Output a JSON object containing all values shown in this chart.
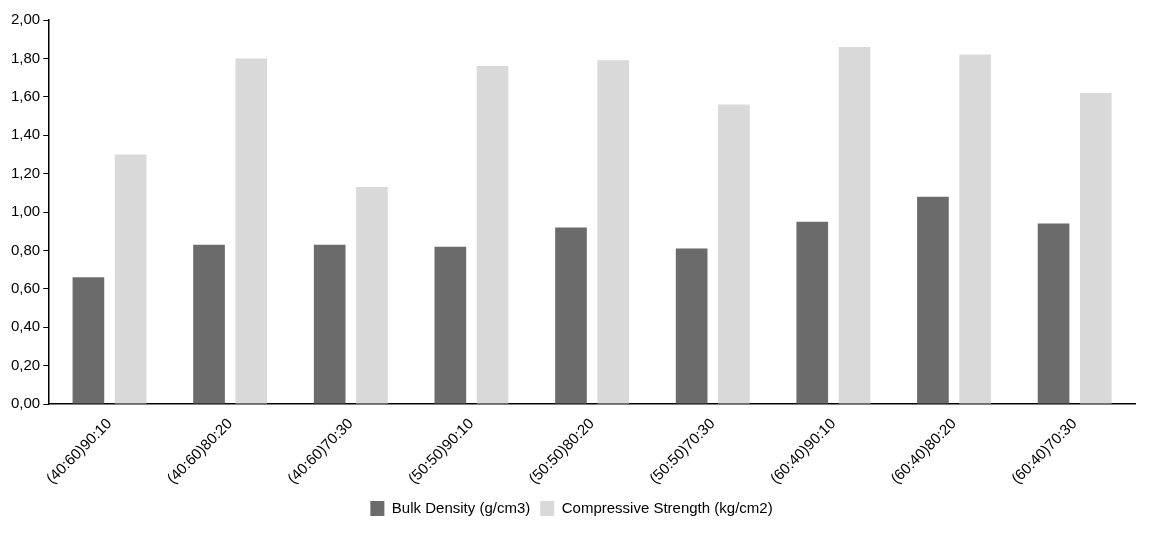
{
  "chart_data": {
    "type": "bar",
    "categories": [
      "(40:60)90:10",
      "(40:60)80:20",
      "(40:60)70:30",
      "(50:50)90:10",
      "(50:50)80:20",
      "(50:50)70:30",
      "(60:40)90:10",
      "(60:40)80:20",
      "(60:40)70:30"
    ],
    "series": [
      {
        "name": "Bulk Density (g/cm3)",
        "color": "#6b6b6b",
        "values": [
          0.66,
          0.83,
          0.83,
          0.82,
          0.92,
          0.81,
          0.95,
          1.08,
          0.94
        ]
      },
      {
        "name": "Compressive Strength (kg/cm2)",
        "color": "#d9d9d9",
        "values": [
          1.3,
          1.8,
          1.13,
          1.76,
          1.79,
          1.56,
          1.86,
          1.82,
          1.62
        ]
      }
    ],
    "ylim": [
      0,
      2
    ],
    "yticks": [
      {
        "value": 0,
        "label": "0,00"
      },
      {
        "value": 0.2,
        "label": "0,20"
      },
      {
        "value": 0.4,
        "label": "0,40"
      },
      {
        "value": 0.6,
        "label": "0,60"
      },
      {
        "value": 0.8,
        "label": "0,80"
      },
      {
        "value": 1,
        "label": "1,00"
      },
      {
        "value": 1.2,
        "label": "1,20"
      },
      {
        "value": 1.4,
        "label": "1,40"
      },
      {
        "value": 1.6,
        "label": "1,60"
      },
      {
        "value": 1.8,
        "label": "1,80"
      },
      {
        "value": 2,
        "label": "2,00"
      }
    ],
    "grid": false,
    "legend": "bottom"
  }
}
